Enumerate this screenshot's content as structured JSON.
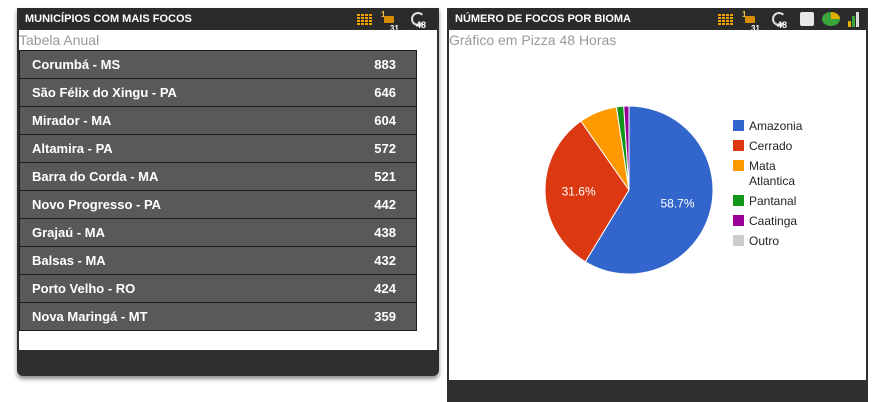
{
  "left_panel": {
    "title": "MUNICÍPIOS COM MAIS FOCOS",
    "subtitle": "Tabela Anual",
    "icons": [
      "table-grid-icon",
      "calendar-31-icon",
      "clock-48-icon"
    ],
    "icon_labels": {
      "calendar": "1",
      "calendar_num": "31",
      "clock": "48"
    },
    "rows": [
      {
        "name": "Corumbá - MS",
        "value": "883"
      },
      {
        "name": "São Félix do Xingu - PA",
        "value": "646"
      },
      {
        "name": "Mirador - MA",
        "value": "604"
      },
      {
        "name": "Altamira - PA",
        "value": "572"
      },
      {
        "name": "Barra do Corda - MA",
        "value": "521"
      },
      {
        "name": "Novo Progresso - PA",
        "value": "442"
      },
      {
        "name": "Grajaú - MA",
        "value": "438"
      },
      {
        "name": "Balsas - MA",
        "value": "432"
      },
      {
        "name": "Porto Velho - RO",
        "value": "424"
      },
      {
        "name": "Nova Maringá - MT",
        "value": "359"
      }
    ]
  },
  "right_panel": {
    "title": "NÚMERO DE FOCOS POR BIOMA",
    "subtitle": "Gráfico em Pizza 48 Horas",
    "icons": [
      "table-grid-icon",
      "calendar-31-icon",
      "clock-48-icon",
      "document-icon",
      "pie-chart-icon",
      "bar-chart-icon"
    ],
    "icon_labels": {
      "calendar": "1",
      "calendar_num": "31",
      "clock": "48"
    }
  },
  "colors": {
    "header_bg": "#2b2b2b",
    "row_bg": "#595959",
    "amazonia": "#3366cc",
    "cerrado": "#dc3912",
    "mata_atlantica": "#ff9900",
    "pantanal": "#109618",
    "caatinga": "#990099",
    "outro": "#cccccc"
  },
  "chart_data": {
    "type": "pie",
    "slices": [
      {
        "name": "Amazonia",
        "value": 58.7,
        "color": "#3366cc",
        "label": "58.7%"
      },
      {
        "name": "Cerrado",
        "value": 31.6,
        "color": "#dc3912",
        "label": "31.6%"
      },
      {
        "name": "Mata Atlantica",
        "value": 7.3,
        "color": "#ff9900",
        "label": ""
      },
      {
        "name": "Pantanal",
        "value": 1.4,
        "color": "#109618",
        "label": ""
      },
      {
        "name": "Caatinga",
        "value": 1.0,
        "color": "#990099",
        "label": ""
      },
      {
        "name": "Outro",
        "value": 0.0,
        "color": "#cccccc",
        "label": ""
      }
    ],
    "legend_position": "right"
  }
}
